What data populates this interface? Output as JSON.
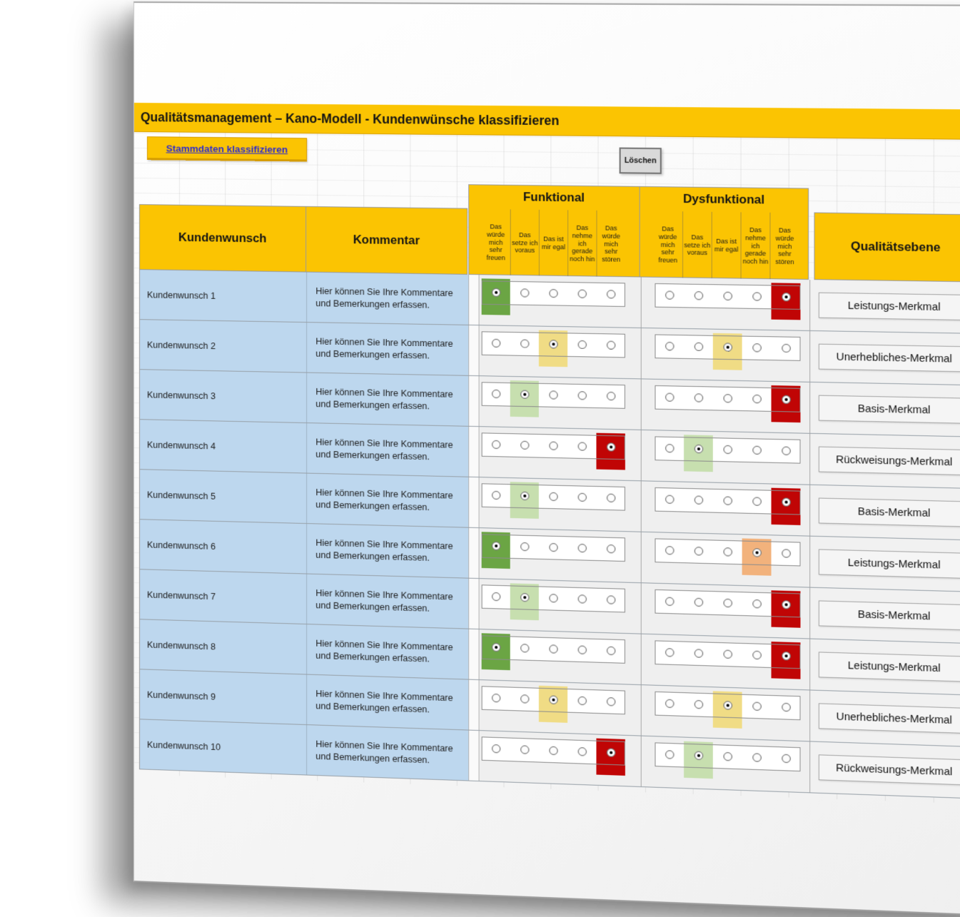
{
  "header": {
    "title": "Qualitätsmanagement – Kano-Modell - Kundenwünsche klassifizieren"
  },
  "toolbar": {
    "link_label": "Stammdaten klassifizieren",
    "delete_label": "Löschen"
  },
  "table": {
    "headers": {
      "kundenwunsch": "Kundenwunsch",
      "kommentar": "Kommentar",
      "funktional": "Funktional",
      "dysfunktional": "Dysfunktional",
      "qualitaetsebene": "Qualitätsebene"
    },
    "scale_labels": [
      "Das würde mich sehr freuen",
      "Das setze ich voraus",
      "Das ist mir egal",
      "Das nehme ich gerade noch hin",
      "Das würde mich sehr stören"
    ],
    "rows": [
      {
        "label": "Kundenwunsch 1",
        "comment": "Hier können Sie Ihre Kommentare und Bemerkungen erfassen.",
        "funktional": {
          "selected": 1,
          "color": "green"
        },
        "dysfunktional": {
          "selected": 5,
          "color": "red"
        },
        "quality": "Leistungs-Merkmal"
      },
      {
        "label": "Kundenwunsch 2",
        "comment": "Hier können Sie Ihre Kommentare und Bemerkungen erfassen.",
        "funktional": {
          "selected": 3,
          "color": "yellow"
        },
        "dysfunktional": {
          "selected": 3,
          "color": "yellow"
        },
        "quality": "Unerhebliches-Merkmal"
      },
      {
        "label": "Kundenwunsch 3",
        "comment": "Hier können Sie Ihre Kommentare und Bemerkungen erfassen.",
        "funktional": {
          "selected": 2,
          "color": "light_green"
        },
        "dysfunktional": {
          "selected": 5,
          "color": "red"
        },
        "quality": "Basis-Merkmal"
      },
      {
        "label": "Kundenwunsch 4",
        "comment": "Hier können Sie Ihre Kommentare und Bemerkungen erfassen.",
        "funktional": {
          "selected": 5,
          "color": "red"
        },
        "dysfunktional": {
          "selected": 2,
          "color": "light_green"
        },
        "quality": "Rückweisungs-Merkmal"
      },
      {
        "label": "Kundenwunsch 5",
        "comment": "Hier können Sie Ihre Kommentare und Bemerkungen erfassen.",
        "funktional": {
          "selected": 2,
          "color": "light_green"
        },
        "dysfunktional": {
          "selected": 5,
          "color": "red"
        },
        "quality": "Basis-Merkmal"
      },
      {
        "label": "Kundenwunsch 6",
        "comment": "Hier können Sie Ihre Kommentare und Bemerkungen erfassen.",
        "funktional": {
          "selected": 1,
          "color": "green"
        },
        "dysfunktional": {
          "selected": 4,
          "color": "orange"
        },
        "quality": "Leistungs-Merkmal"
      },
      {
        "label": "Kundenwunsch 7",
        "comment": "Hier können Sie Ihre Kommentare und Bemerkungen erfassen.",
        "funktional": {
          "selected": 2,
          "color": "light_green"
        },
        "dysfunktional": {
          "selected": 5,
          "color": "red"
        },
        "quality": "Basis-Merkmal"
      },
      {
        "label": "Kundenwunsch 8",
        "comment": "Hier können Sie Ihre Kommentare und Bemerkungen erfassen.",
        "funktional": {
          "selected": 1,
          "color": "green"
        },
        "dysfunktional": {
          "selected": 5,
          "color": "red"
        },
        "quality": "Leistungs-Merkmal"
      },
      {
        "label": "Kundenwunsch 9",
        "comment": "Hier können Sie Ihre Kommentare und Bemerkungen erfassen.",
        "funktional": {
          "selected": 3,
          "color": "yellow"
        },
        "dysfunktional": {
          "selected": 3,
          "color": "yellow"
        },
        "quality": "Unerhebliches-Merkmal"
      },
      {
        "label": "Kundenwunsch 10",
        "comment": "Hier können Sie Ihre Kommentare und Bemerkungen erfassen.",
        "funktional": {
          "selected": 5,
          "color": "red"
        },
        "dysfunktional": {
          "selected": 2,
          "color": "light_green"
        },
        "quality": "Rückweisungs-Merkmal"
      }
    ]
  },
  "colors": {
    "gold": "#FBC402",
    "row_blue": "#BDD7EE",
    "zone_gray": "#EFEFEF",
    "highlight": {
      "green": "#6BA544",
      "light_green": "#C7DFAF",
      "yellow": "#F0DC85",
      "orange": "#F2B27C",
      "red": "#C00505"
    }
  }
}
